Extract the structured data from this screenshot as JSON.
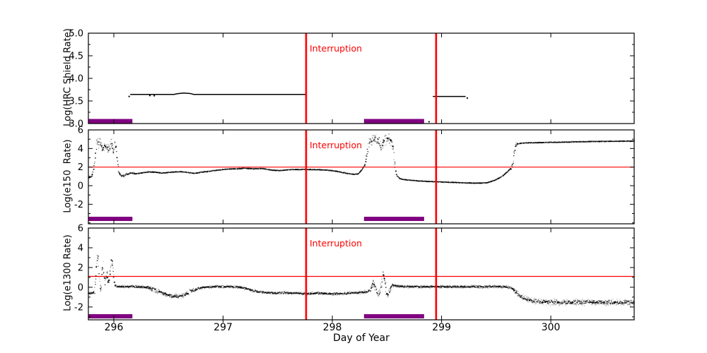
{
  "figure": {
    "xlabel": "Day of Year",
    "background": "#ffffff",
    "axis_color": "#000000",
    "data_color": "#000000",
    "x_range": [
      295.767,
      300.763
    ],
    "x_major_ticks": [
      296,
      297,
      298,
      299,
      300
    ],
    "x_tick_labels": [
      "296",
      "297",
      "298",
      "299",
      "300"
    ],
    "interruptions": {
      "label": "Interruption",
      "color": "#ff0000",
      "days": [
        297.76,
        298.95
      ]
    },
    "support_bars": {
      "color": "#800080",
      "day_ranges": [
        [
          295.767,
          296.17
        ],
        [
          298.29,
          298.84
        ]
      ]
    }
  },
  "chart_data": [
    {
      "type": "line",
      "name": "HRC Shield Rate",
      "ylabel": "Log(HRC Shield Rate)",
      "ylim": [
        3.0,
        5.0
      ],
      "yticks": [
        3.0,
        3.5,
        4.0,
        4.5,
        5.0
      ],
      "ytick_labels": [
        "3.0",
        "3.5",
        "4.0",
        "4.5",
        "5.0"
      ],
      "y_minor_step": 0.25,
      "threshold_line": null,
      "series": [
        {
          "name": "hrc-shield-pre-interruption",
          "points": [
            [
              296.15,
              3.645
            ],
            [
              296.55,
              3.645
            ],
            [
              296.58,
              3.66
            ],
            [
              296.64,
              3.675
            ],
            [
              296.7,
              3.665
            ],
            [
              296.73,
              3.645
            ],
            [
              297.2,
              3.645
            ],
            [
              297.76,
              3.645
            ]
          ]
        },
        {
          "name": "hrc-shield-post-interruption",
          "points": [
            [
              298.92,
              3.6
            ],
            [
              299.22,
              3.6
            ]
          ]
        }
      ],
      "extra_points": [
        [
          296.14,
          3.6
        ],
        [
          296.33,
          3.62
        ],
        [
          296.37,
          3.615
        ],
        [
          298.885,
          3.04
        ],
        [
          299.235,
          3.565
        ]
      ]
    },
    {
      "type": "scatter",
      "name": "e150 Rate",
      "ylabel": "Log(e150  Rate)",
      "ylim": [
        -4.1,
        6
      ],
      "yticks": [
        -2,
        0,
        2,
        4,
        6
      ],
      "ytick_labels": [
        "-2",
        "0",
        "2",
        "4",
        "6"
      ],
      "y_minor_step": 1,
      "threshold_line": {
        "y": 2.0,
        "color": "#ff0000"
      },
      "noise_default": 0.045,
      "noise_regions": [
        [
          295.815,
          296.045,
          0.5
        ],
        [
          296.05,
          296.2,
          0.12
        ],
        [
          298.3,
          298.58,
          0.5
        ],
        [
          299.63,
          299.69,
          0.3
        ]
      ],
      "series": [
        {
          "name": "e150",
          "points": [
            [
              295.767,
              0.85
            ],
            [
              295.785,
              0.9
            ],
            [
              295.8,
              1.05
            ],
            [
              295.815,
              1.8
            ],
            [
              295.83,
              3.2
            ],
            [
              295.845,
              4.5
            ],
            [
              295.86,
              4.65
            ],
            [
              295.875,
              4.6
            ],
            [
              295.89,
              4.15
            ],
            [
              295.9,
              3.85
            ],
            [
              295.915,
              4.3
            ],
            [
              295.93,
              4.2
            ],
            [
              295.945,
              4.05
            ],
            [
              295.955,
              3.6
            ],
            [
              295.965,
              4.1
            ],
            [
              295.975,
              4.6
            ],
            [
              295.985,
              4.55
            ],
            [
              295.995,
              3.5
            ],
            [
              296.005,
              4.3
            ],
            [
              296.015,
              4.35
            ],
            [
              296.025,
              3.9
            ],
            [
              296.035,
              2.6
            ],
            [
              296.045,
              1.5
            ],
            [
              296.06,
              1.1
            ],
            [
              296.09,
              1.05
            ],
            [
              296.12,
              1.25
            ],
            [
              296.16,
              1.35
            ],
            [
              296.2,
              1.28
            ],
            [
              296.26,
              1.38
            ],
            [
              296.32,
              1.48
            ],
            [
              296.38,
              1.45
            ],
            [
              296.44,
              1.35
            ],
            [
              296.5,
              1.42
            ],
            [
              296.56,
              1.48
            ],
            [
              296.62,
              1.5
            ],
            [
              296.68,
              1.42
            ],
            [
              296.74,
              1.32
            ],
            [
              296.8,
              1.45
            ],
            [
              296.88,
              1.55
            ],
            [
              296.96,
              1.68
            ],
            [
              297.04,
              1.78
            ],
            [
              297.12,
              1.82
            ],
            [
              297.2,
              1.86
            ],
            [
              297.28,
              1.82
            ],
            [
              297.36,
              1.84
            ],
            [
              297.44,
              1.68
            ],
            [
              297.52,
              1.62
            ],
            [
              297.6,
              1.72
            ],
            [
              297.68,
              1.73
            ],
            [
              297.76,
              1.75
            ],
            [
              297.84,
              1.72
            ],
            [
              297.92,
              1.7
            ],
            [
              298.0,
              1.62
            ],
            [
              298.08,
              1.45
            ],
            [
              298.14,
              1.32
            ],
            [
              298.2,
              1.22
            ],
            [
              298.24,
              1.28
            ],
            [
              298.27,
              1.7
            ],
            [
              298.3,
              2.3
            ],
            [
              298.32,
              3.6
            ],
            [
              298.34,
              4.75
            ],
            [
              298.37,
              5.0
            ],
            [
              298.4,
              5.05
            ],
            [
              298.43,
              4.9
            ],
            [
              298.45,
              3.8
            ],
            [
              298.47,
              4.85
            ],
            [
              298.5,
              5.05
            ],
            [
              298.53,
              5.0
            ],
            [
              298.55,
              4.5
            ],
            [
              298.57,
              2.5
            ],
            [
              298.59,
              1.1
            ],
            [
              298.62,
              0.75
            ],
            [
              298.66,
              0.65
            ],
            [
              298.72,
              0.58
            ],
            [
              298.8,
              0.5
            ],
            [
              298.88,
              0.45
            ],
            [
              298.95,
              0.42
            ],
            [
              299.05,
              0.37
            ],
            [
              299.15,
              0.33
            ],
            [
              299.25,
              0.29
            ],
            [
              299.35,
              0.27
            ],
            [
              299.42,
              0.33
            ],
            [
              299.48,
              0.55
            ],
            [
              299.54,
              0.9
            ],
            [
              299.58,
              1.25
            ],
            [
              299.62,
              1.7
            ],
            [
              299.645,
              2.0
            ],
            [
              299.655,
              2.5
            ],
            [
              299.665,
              3.5
            ],
            [
              299.675,
              4.2
            ],
            [
              299.69,
              4.5
            ],
            [
              299.72,
              4.55
            ],
            [
              299.78,
              4.6
            ],
            [
              299.86,
              4.62
            ],
            [
              299.95,
              4.65
            ],
            [
              300.1,
              4.68
            ],
            [
              300.25,
              4.72
            ],
            [
              300.4,
              4.75
            ],
            [
              300.55,
              4.77
            ],
            [
              300.763,
              4.8
            ]
          ]
        }
      ]
    },
    {
      "type": "scatter",
      "name": "e1300 Rate",
      "ylabel": "Log(e1300 Rate)",
      "ylim": [
        -3.3,
        6
      ],
      "yticks": [
        -2,
        0,
        2,
        4,
        6
      ],
      "ytick_labels": [
        "-2",
        "0",
        "2",
        "4",
        "6"
      ],
      "y_minor_step": 1,
      "threshold_line": {
        "y": 1.1,
        "color": "#ff0000"
      },
      "noise_default": 0.13,
      "noise_regions": [
        [
          295.82,
          296.005,
          0.45
        ],
        [
          296.3,
          296.75,
          0.22
        ],
        [
          298.35,
          298.56,
          0.35
        ],
        [
          299.66,
          300.763,
          0.27
        ]
      ],
      "series": [
        {
          "name": "e1300",
          "points": [
            [
              295.767,
              -0.65
            ],
            [
              295.79,
              -0.62
            ],
            [
              295.81,
              -0.55
            ],
            [
              295.825,
              -0.35
            ],
            [
              295.835,
              1.2
            ],
            [
              295.845,
              2.9
            ],
            [
              295.855,
              3.0
            ],
            [
              295.862,
              2.2
            ],
            [
              295.87,
              0.3
            ],
            [
              295.878,
              -0.25
            ],
            [
              295.886,
              0.2
            ],
            [
              295.894,
              1.9
            ],
            [
              295.902,
              2.2
            ],
            [
              295.91,
              1.1
            ],
            [
              295.918,
              0.35
            ],
            [
              295.926,
              0.8
            ],
            [
              295.934,
              1.45
            ],
            [
              295.942,
              1.1
            ],
            [
              295.95,
              0.35
            ],
            [
              295.958,
              0.7
            ],
            [
              295.966,
              1.6
            ],
            [
              295.974,
              2.5
            ],
            [
              295.982,
              2.9
            ],
            [
              295.99,
              2.4
            ],
            [
              295.998,
              1.0
            ],
            [
              296.01,
              0.2
            ],
            [
              296.03,
              0.08
            ],
            [
              296.08,
              0.05
            ],
            [
              296.15,
              0.06
            ],
            [
              296.22,
              0.05
            ],
            [
              296.3,
              0.0
            ],
            [
              296.36,
              -0.18
            ],
            [
              296.42,
              -0.45
            ],
            [
              296.48,
              -0.7
            ],
            [
              296.54,
              -0.9
            ],
            [
              296.6,
              -0.95
            ],
            [
              296.66,
              -0.7
            ],
            [
              296.72,
              -0.35
            ],
            [
              296.78,
              -0.1
            ],
            [
              296.84,
              0.0
            ],
            [
              296.92,
              0.05
            ],
            [
              297.0,
              0.07
            ],
            [
              297.08,
              0.06
            ],
            [
              297.16,
              0.0
            ],
            [
              297.24,
              -0.25
            ],
            [
              297.32,
              -0.45
            ],
            [
              297.4,
              -0.55
            ],
            [
              297.48,
              -0.6
            ],
            [
              297.56,
              -0.55
            ],
            [
              297.64,
              -0.6
            ],
            [
              297.76,
              -0.65
            ],
            [
              297.88,
              -0.6
            ],
            [
              298.0,
              -0.68
            ],
            [
              298.1,
              -0.62
            ],
            [
              298.2,
              -0.58
            ],
            [
              298.3,
              -0.48
            ],
            [
              298.35,
              -0.35
            ],
            [
              298.375,
              0.45
            ],
            [
              298.39,
              0.1
            ],
            [
              298.41,
              -0.5
            ],
            [
              298.43,
              -0.7
            ],
            [
              298.45,
              0.2
            ],
            [
              298.465,
              1.45
            ],
            [
              298.48,
              0.6
            ],
            [
              298.495,
              -0.5
            ],
            [
              298.51,
              -0.8
            ],
            [
              298.53,
              -0.2
            ],
            [
              298.55,
              0.3
            ],
            [
              298.57,
              0.2
            ],
            [
              298.6,
              0.12
            ],
            [
              298.65,
              0.08
            ],
            [
              298.72,
              0.06
            ],
            [
              298.8,
              0.05
            ],
            [
              298.9,
              0.06
            ],
            [
              299.0,
              0.05
            ],
            [
              299.15,
              0.06
            ],
            [
              299.3,
              0.05
            ],
            [
              299.45,
              0.06
            ],
            [
              299.58,
              0.05
            ],
            [
              299.63,
              0.0
            ],
            [
              299.66,
              -0.25
            ],
            [
              299.69,
              -0.6
            ],
            [
              299.72,
              -0.9
            ],
            [
              299.76,
              -1.15
            ],
            [
              299.82,
              -1.35
            ],
            [
              299.9,
              -1.45
            ],
            [
              300.0,
              -1.5
            ],
            [
              300.15,
              -1.52
            ],
            [
              300.3,
              -1.55
            ],
            [
              300.45,
              -1.52
            ],
            [
              300.6,
              -1.55
            ],
            [
              300.763,
              -1.55
            ]
          ]
        }
      ]
    }
  ]
}
